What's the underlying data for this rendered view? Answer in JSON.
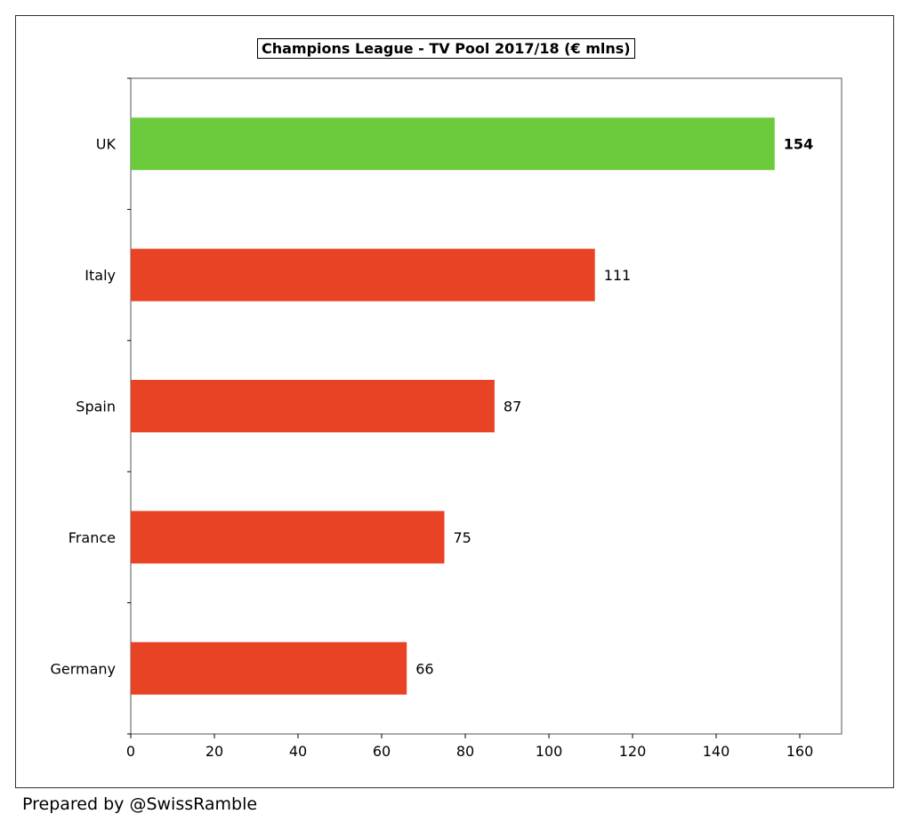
{
  "chart_data": {
    "type": "bar",
    "orientation": "horizontal",
    "title": "Champions League - TV Pool 2017/18 (€ mlns)",
    "categories": [
      "UK",
      "Italy",
      "Spain",
      "France",
      "Germany"
    ],
    "values": [
      154,
      111,
      87,
      75,
      66
    ],
    "value_labels": [
      "154",
      "111",
      "87",
      "75",
      "66"
    ],
    "bold_labels": [
      true,
      false,
      false,
      false,
      false
    ],
    "bar_colors": [
      "#6CCB3D",
      "#E94325",
      "#E94325",
      "#E94325",
      "#E94325"
    ],
    "xlim": [
      0,
      170
    ],
    "x_ticks": [
      0,
      20,
      40,
      60,
      80,
      100,
      120,
      140,
      160
    ],
    "xlabel": "",
    "ylabel": "",
    "grid": false,
    "legend": "none"
  },
  "footer": "Prepared by @SwissRamble"
}
